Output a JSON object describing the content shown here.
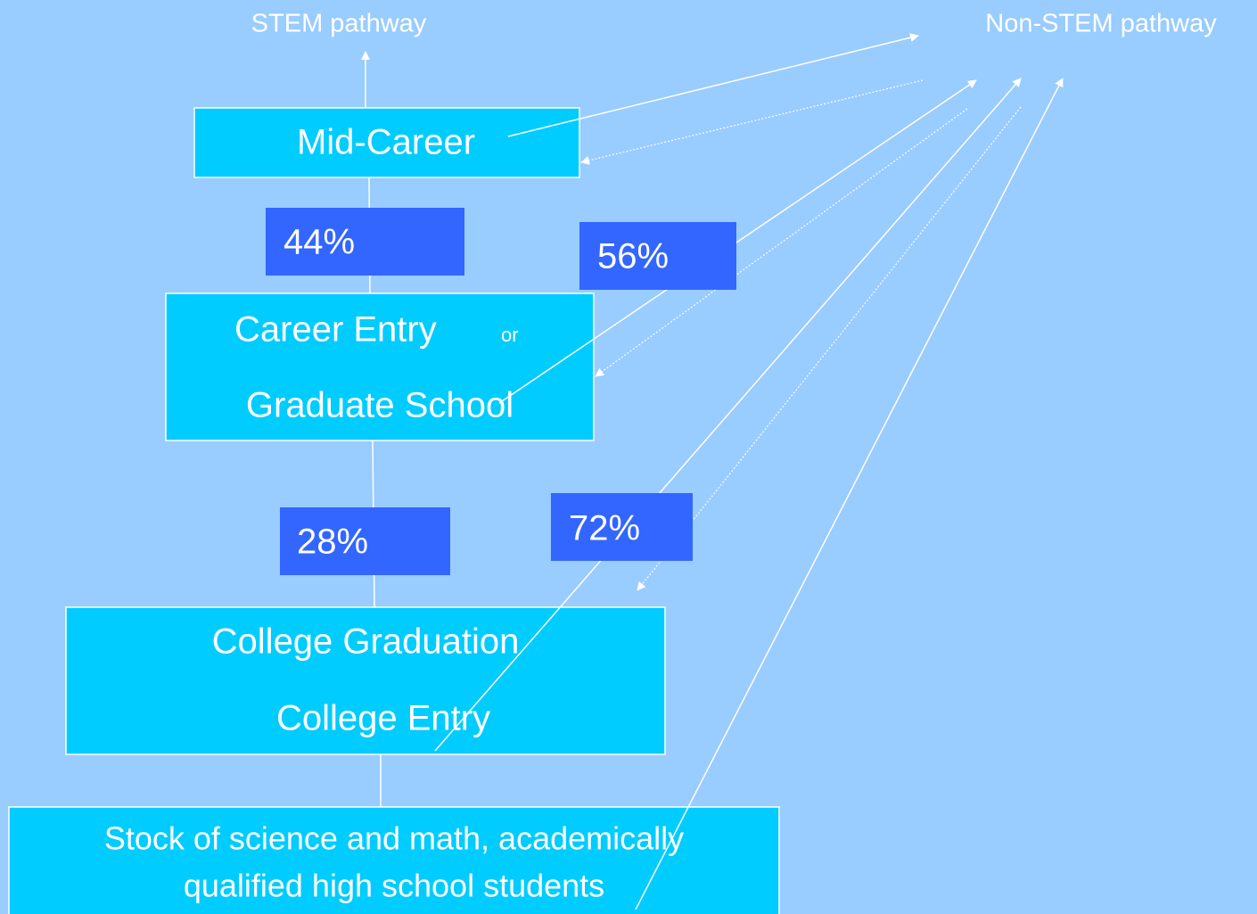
{
  "labels": {
    "stem": "STEM pathway",
    "non_stem": "Non-STEM pathway"
  },
  "nodes": [
    {
      "lines": [
        "Mid-Career"
      ]
    },
    {
      "lines": [
        "Career Entry",
        "Graduate School"
      ],
      "connector": "or"
    },
    {
      "lines": [
        "College Graduation",
        "College Entry"
      ]
    },
    {
      "lines": [
        "Stock of science and math, academically",
        "qualified high school students"
      ]
    }
  ],
  "rates": {
    "stay": [
      "44%",
      "28%"
    ],
    "leave": [
      "56%",
      "72%"
    ]
  }
}
